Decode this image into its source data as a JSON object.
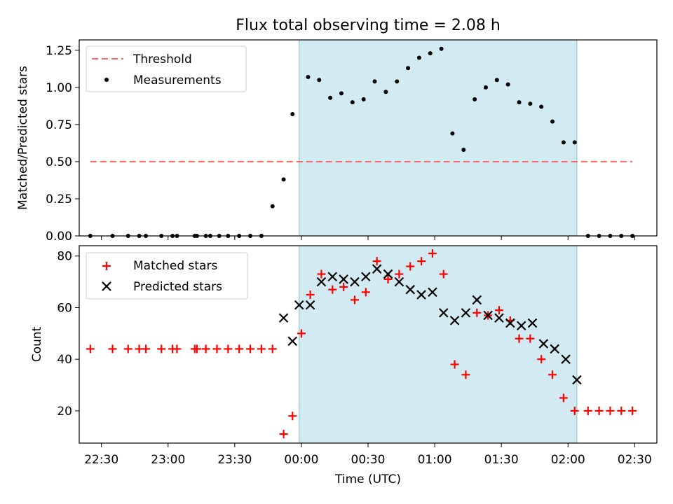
{
  "title": "Flux total observing time = 2.08 h",
  "xlabel": "Time (UTC)",
  "colors": {
    "threshold": "#ff6666",
    "measurement": "#000000",
    "matched": "#ff0000",
    "predicted": "#000000",
    "band_fill": "#add8e6",
    "band_edge": "#7fc4cc"
  },
  "chart_data": [
    {
      "type": "scatter",
      "panel": "top",
      "ylabel": "Matched/Predicted stars",
      "xlim": [
        "22:20",
        "02:40"
      ],
      "ylim": [
        0,
        1.32
      ],
      "yticks": [
        0.0,
        0.25,
        0.5,
        0.75,
        1.0,
        1.25
      ],
      "ytick_labels": [
        "0.00",
        "0.25",
        "0.50",
        "0.75",
        "1.00",
        "1.25"
      ],
      "xticks": [
        "22:30",
        "23:00",
        "23:30",
        "00:00",
        "00:30",
        "01:00",
        "01:30",
        "02:00",
        "02:30"
      ],
      "legend_position": "top-left",
      "shaded_interval": [
        "23:59",
        "02:04"
      ],
      "threshold": {
        "name": "Threshold",
        "y": 0.5,
        "x": [
          "22:25",
          "02:29"
        ]
      },
      "series": [
        {
          "name": "Measurements",
          "x": [
            "22:25",
            "22:35",
            "22:42",
            "22:47",
            "22:50",
            "22:57",
            "23:02",
            "23:04",
            "23:12",
            "23:13",
            "23:17",
            "23:19",
            "23:23",
            "23:27",
            "23:32",
            "23:37",
            "23:42",
            "23:47",
            "23:52",
            "23:56",
            "00:03",
            "00:08",
            "00:13",
            "00:18",
            "00:23",
            "00:28",
            "00:33",
            "00:38",
            "00:43",
            "00:48",
            "00:53",
            "00:58",
            "01:03",
            "01:08",
            "01:13",
            "01:18",
            "01:23",
            "01:28",
            "01:33",
            "01:38",
            "01:43",
            "01:48",
            "01:53",
            "01:58",
            "02:03",
            "02:09",
            "02:14",
            "02:19",
            "02:24",
            "02:29"
          ],
          "y": [
            0,
            0,
            0,
            0,
            0,
            0,
            0,
            0,
            0,
            0,
            0,
            0,
            0,
            0,
            0,
            0,
            0,
            0.2,
            0.38,
            0.82,
            1.07,
            1.05,
            0.93,
            0.96,
            0.9,
            0.92,
            1.04,
            0.97,
            1.04,
            1.13,
            1.2,
            1.23,
            1.26,
            0.69,
            0.58,
            0.92,
            1.0,
            1.05,
            1.02,
            0.9,
            0.89,
            0.87,
            0.77,
            0.63,
            0.63,
            0,
            0,
            0,
            0,
            0
          ]
        }
      ]
    },
    {
      "type": "scatter",
      "panel": "bottom",
      "ylabel": "Count",
      "xlim": [
        "22:20",
        "02:40"
      ],
      "ylim": [
        7.5,
        84
      ],
      "yticks": [
        20,
        40,
        60,
        80
      ],
      "ytick_labels": [
        "20",
        "40",
        "60",
        "80"
      ],
      "xticks": [
        "22:30",
        "23:00",
        "23:30",
        "00:00",
        "00:30",
        "01:00",
        "01:30",
        "02:00",
        "02:30"
      ],
      "xtick_labels": [
        "22:30",
        "23:00",
        "23:30",
        "00:00",
        "00:30",
        "01:00",
        "01:30",
        "02:00",
        "02:30"
      ],
      "legend_position": "top-left",
      "shaded_interval": [
        "23:59",
        "02:04"
      ],
      "series": [
        {
          "name": "Matched stars",
          "marker": "+",
          "x": [
            "22:25",
            "22:35",
            "22:42",
            "22:47",
            "22:50",
            "22:57",
            "23:02",
            "23:04",
            "23:12",
            "23:13",
            "23:17",
            "23:22",
            "23:27",
            "23:32",
            "23:37",
            "23:42",
            "23:47",
            "23:52",
            "23:56",
            "24:00",
            "24:04",
            "24:09",
            "24:14",
            "24:19",
            "24:24",
            "24:29",
            "24:34",
            "24:39",
            "24:44",
            "24:49",
            "24:54",
            "24:59",
            "25:04",
            "25:09",
            "25:14",
            "25:19",
            "25:24",
            "25:29",
            "25:34",
            "25:38",
            "25:43",
            "25:48",
            "25:53",
            "25:58",
            "26:03",
            "26:09",
            "26:14",
            "26:19",
            "26:24",
            "26:29"
          ],
          "y": [
            44,
            44,
            44,
            44,
            44,
            44,
            44,
            44,
            44,
            44,
            44,
            44,
            44,
            44,
            44,
            44,
            44,
            11,
            18,
            50,
            65,
            73,
            67,
            68,
            63,
            66,
            78,
            71,
            73,
            76,
            78,
            81,
            73,
            38,
            34,
            58,
            57,
            59,
            55,
            48,
            48,
            40,
            34,
            25,
            20,
            20,
            20,
            20,
            20,
            20
          ]
        },
        {
          "name": "Predicted stars",
          "marker": "x",
          "x": [
            "23:52",
            "23:56",
            "23:59",
            "00:04",
            "00:09",
            "00:14",
            "00:19",
            "00:24",
            "00:29",
            "00:34",
            "00:39",
            "00:44",
            "00:49",
            "00:54",
            "00:59",
            "01:04",
            "01:09",
            "01:14",
            "01:19",
            "01:24",
            "01:29",
            "01:34",
            "01:39",
            "01:44",
            "01:49",
            "01:54",
            "01:59",
            "02:04"
          ],
          "y": [
            56,
            47,
            61,
            61,
            70,
            72,
            71,
            70,
            72,
            75,
            73,
            70,
            67,
            65,
            66,
            58,
            55,
            58,
            63,
            57,
            56,
            54,
            53,
            54,
            46,
            44,
            40,
            32
          ]
        }
      ]
    }
  ]
}
